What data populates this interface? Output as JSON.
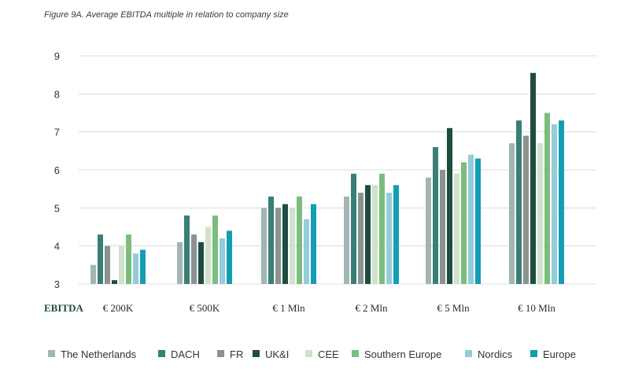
{
  "chart_data": {
    "type": "bar",
    "title": "Figure 9A. Average EBITDA multiple in relation to company size",
    "xlabel": "EBITDA",
    "ylabel": "",
    "ylim": [
      3,
      9
    ],
    "yticks": [
      3,
      4,
      5,
      6,
      7,
      8,
      9
    ],
    "grid": true,
    "legend_position": "bottom",
    "categories": [
      "€ 200K",
      "€ 500K",
      "€ 1 Mln",
      "€ 2 Mln",
      "€ 5 Mln",
      "€ 10 Mln"
    ],
    "series": [
      {
        "name": "The Netherlands",
        "color": "#a2b5b3",
        "values": [
          3.5,
          4.1,
          5.0,
          5.3,
          5.8,
          6.7
        ]
      },
      {
        "name": "DACH",
        "color": "#3a7e78",
        "values": [
          4.3,
          4.8,
          5.3,
          5.9,
          6.6,
          7.3
        ]
      },
      {
        "name": "FR",
        "color": "#8a938f",
        "values": [
          4.0,
          4.3,
          5.0,
          5.4,
          6.0,
          6.9
        ]
      },
      {
        "name": "UK&I",
        "color": "#1e4d3f",
        "values": [
          3.1,
          4.1,
          5.1,
          5.6,
          7.1,
          8.55
        ]
      },
      {
        "name": "CEE",
        "color": "#cfe2cb",
        "values": [
          4.0,
          4.5,
          5.0,
          5.6,
          5.9,
          6.7
        ]
      },
      {
        "name": "Southern Europe",
        "color": "#7cbd7e",
        "values": [
          4.3,
          4.8,
          5.3,
          5.9,
          6.2,
          7.5
        ]
      },
      {
        "name": "Nordics",
        "color": "#94ccd9",
        "values": [
          3.8,
          4.2,
          4.7,
          5.4,
          6.4,
          7.2
        ]
      },
      {
        "name": "Europe",
        "color": "#139eb4",
        "values": [
          3.9,
          4.4,
          5.1,
          5.6,
          6.3,
          7.3
        ]
      }
    ]
  }
}
